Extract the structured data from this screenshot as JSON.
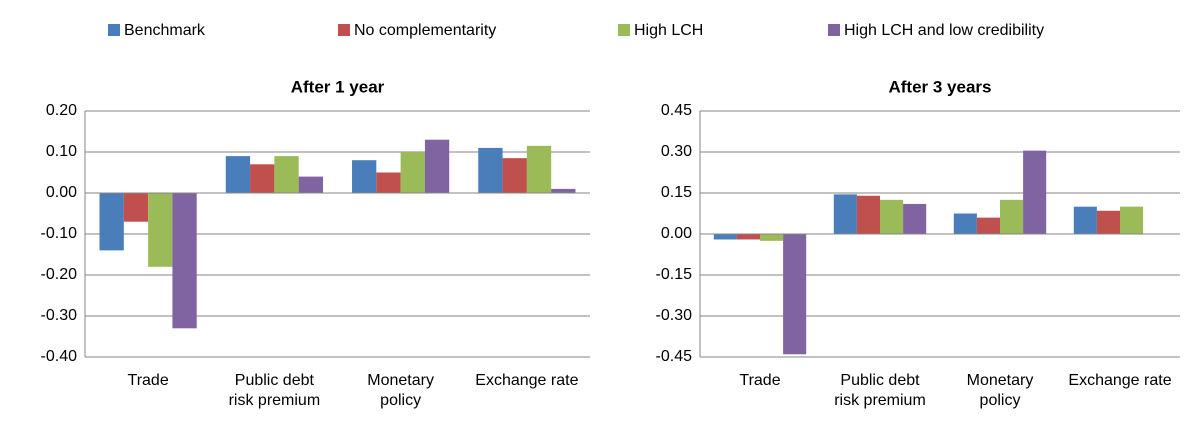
{
  "chart_data": [
    {
      "type": "bar",
      "title": "After 1 year",
      "categories": [
        [
          "Trade"
        ],
        [
          "Public debt",
          "risk premium"
        ],
        [
          "Monetary",
          "policy"
        ],
        [
          "Exchange rate"
        ]
      ],
      "series": [
        {
          "name": "Benchmark",
          "color": "#4a7ebb",
          "values": [
            -0.14,
            0.09,
            0.08,
            0.11
          ]
        },
        {
          "name": "No complementarity",
          "color": "#c0504d",
          "values": [
            -0.07,
            0.07,
            0.05,
            0.085
          ]
        },
        {
          "name": "High LCH",
          "color": "#9bbb59",
          "values": [
            -0.18,
            0.09,
            0.1,
            0.115
          ]
        },
        {
          "name": "High LCH and low credibility",
          "color": "#8064a2",
          "values": [
            -0.33,
            0.04,
            0.13,
            0.01
          ]
        }
      ],
      "ylim": [
        -0.4,
        0.2
      ],
      "yticks": [
        {
          "value": -0.4,
          "label": "-0.40"
        },
        {
          "value": -0.3,
          "label": "-0.30"
        },
        {
          "value": -0.2,
          "label": "-0.20"
        },
        {
          "value": -0.1,
          "label": "-0.10"
        },
        {
          "value": 0,
          "label": "0.00"
        },
        {
          "value": 0.1,
          "label": "0.10"
        },
        {
          "value": 0.2,
          "label": "0.20"
        }
      ],
      "grid": true
    },
    {
      "type": "bar",
      "title": "After 3 years",
      "categories": [
        [
          "Trade"
        ],
        [
          "Public debt",
          "risk premium"
        ],
        [
          "Monetary",
          "policy"
        ],
        [
          "Exchange rate"
        ]
      ],
      "series": [
        {
          "name": "Benchmark",
          "color": "#4a7ebb",
          "values": [
            -0.02,
            0.145,
            0.075,
            0.1
          ]
        },
        {
          "name": "No complementarity",
          "color": "#c0504d",
          "values": [
            -0.02,
            0.14,
            0.06,
            0.085
          ]
        },
        {
          "name": "High LCH",
          "color": "#9bbb59",
          "values": [
            -0.025,
            0.125,
            0.125,
            0.1
          ]
        },
        {
          "name": "High LCH and low credibility",
          "color": "#8064a2",
          "values": [
            -0.44,
            0.11,
            0.305,
            0
          ]
        }
      ],
      "ylim": [
        -0.45,
        0.45
      ],
      "yticks": [
        {
          "value": -0.45,
          "label": "-0.45"
        },
        {
          "value": -0.3,
          "label": "-0.30"
        },
        {
          "value": -0.15,
          "label": "-0.15"
        },
        {
          "value": 0,
          "label": "0.00"
        },
        {
          "value": 0.15,
          "label": "0.15"
        },
        {
          "value": 0.3,
          "label": "0.30"
        },
        {
          "value": 0.45,
          "label": "0.45"
        }
      ],
      "grid": true
    }
  ]
}
